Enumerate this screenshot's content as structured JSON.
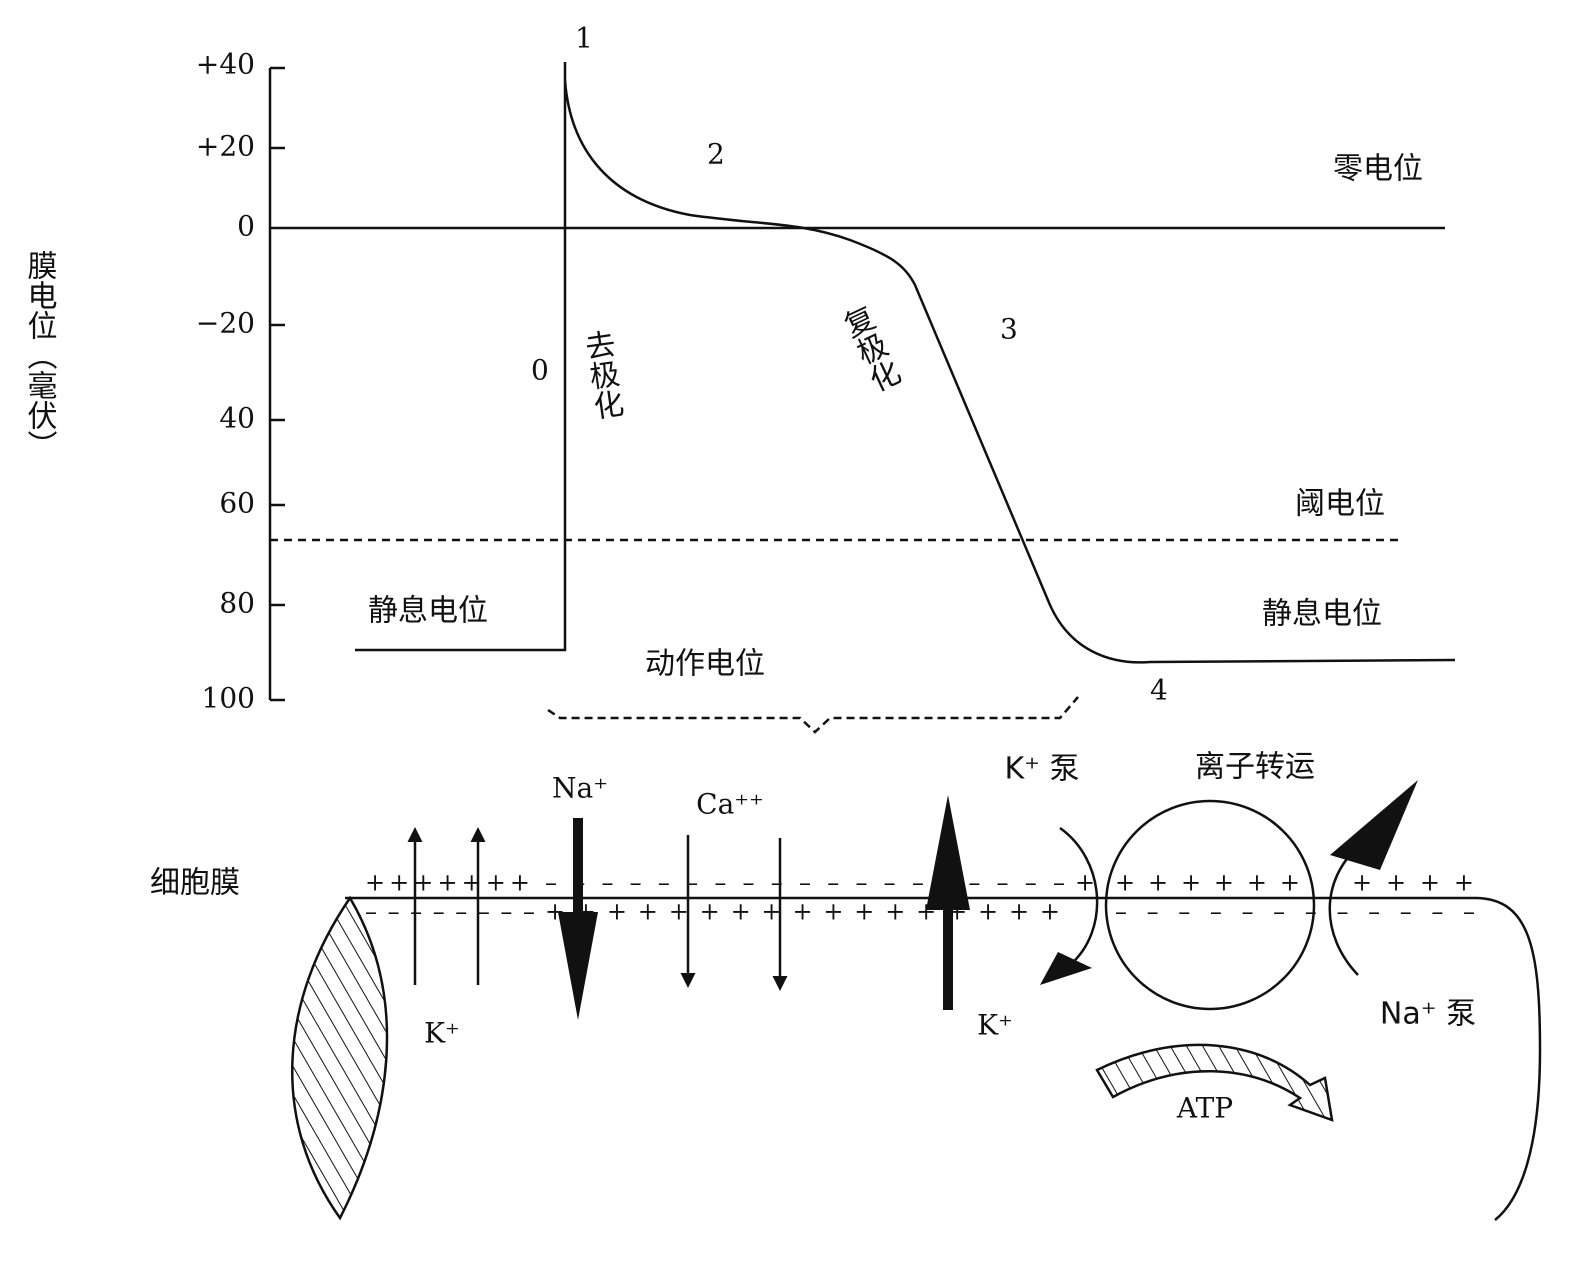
{
  "axis": {
    "title": "膜电位（毫伏）",
    "ticks": [
      "+40",
      "+20",
      "0",
      "−20",
      "40",
      "60",
      "80",
      "100"
    ]
  },
  "phases": [
    "0",
    "1",
    "2",
    "3",
    "4"
  ],
  "labels": {
    "zero_potential": "零电位",
    "threshold_potential": "阈电位",
    "resting_left": "静息电位",
    "resting_right": "静息电位",
    "depolarization": "去极化",
    "repolarization": "复极化",
    "action_potential": "动作电位"
  },
  "membrane": {
    "title": "细胞膜",
    "ion_transport": "离子转运",
    "k_pump": "K⁺ 泵",
    "na_pump": "Na⁺ 泵",
    "na_in": "Na⁺",
    "ca_in": "Ca⁺⁺",
    "k_out_left": "K⁺",
    "k_out_right": "K⁺",
    "atp": "ATP",
    "outer_charges": [
      "+ + + + + + +",
      "– – – – – – – – – – – – – – – – – – –",
      "+",
      "+ + + + + +",
      "+ + + +"
    ],
    "inner_charges": [
      "– – – – – – – –",
      "+ + + + + + + + + + + + + + + + +",
      "– – – – – – – – – – – –"
    ]
  }
}
